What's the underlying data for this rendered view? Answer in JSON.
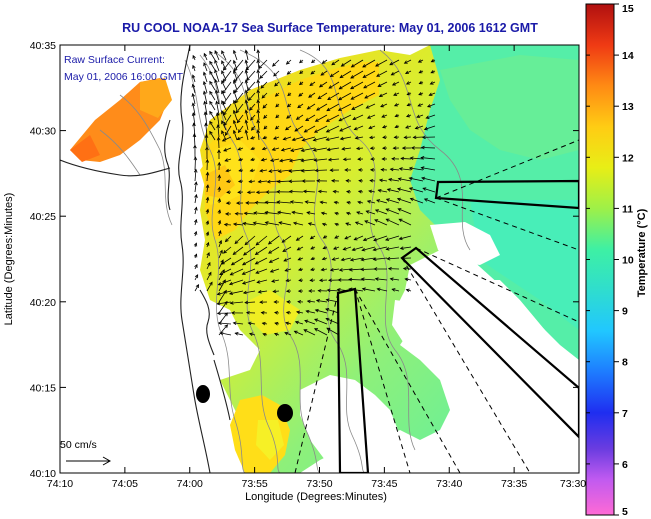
{
  "title": "RU COOL  NOAA-17  Sea Surface Temperature:  May 01, 2006 1612 GMT",
  "overlay": {
    "line1": "Raw Surface Current:",
    "line2": "May 01, 2006 16:00 GMT",
    "scale_label": "50 cm/s"
  },
  "axes": {
    "xlabel": "Longitude (Degrees:Minutes)",
    "ylabel": "Latitude (Degrees:Minutes)",
    "xticks": [
      "74:10",
      "74:05",
      "74:00",
      "73:55",
      "73:50",
      "73:45",
      "73:40",
      "73:35",
      "73:30"
    ],
    "yticks": [
      "40:35",
      "40:30",
      "40:25",
      "40:20",
      "40:15",
      "40:10"
    ]
  },
  "colorbar": {
    "label": "Temperature (°C)",
    "ticks": [
      "15",
      "14",
      "13",
      "12",
      "11",
      "10",
      "9",
      "8",
      "7",
      "6",
      "5"
    ],
    "min": 5,
    "max": 15
  }
}
